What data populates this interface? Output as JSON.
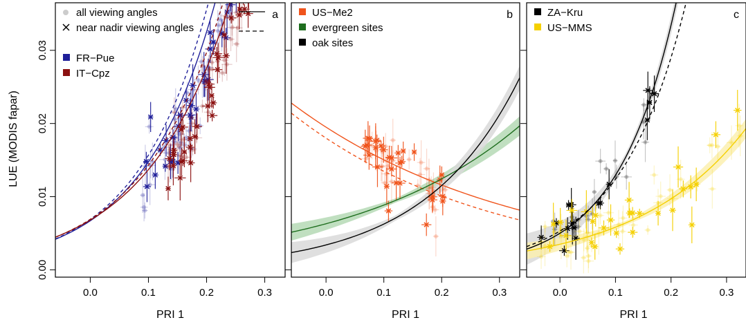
{
  "chart_data": [
    {
      "type": "scatter",
      "panel_label": "a",
      "xlabel": "PRI 1",
      "ylabel": "LUE (MODIS fapar)",
      "xlim": [
        -0.06,
        0.335
      ],
      "ylim": [
        -0.001,
        0.0365
      ],
      "xticks": [
        0.0,
        0.1,
        0.2,
        0.3
      ],
      "xtick_labels": [
        "0.0",
        "0.1",
        "0.2",
        "0.3"
      ],
      "yticks": [
        0.0,
        0.01,
        0.02,
        0.03
      ],
      "ytick_labels": [
        "0.00",
        "0.01",
        "0.02",
        "0.03"
      ],
      "legend": {
        "symbols": [
          {
            "marker": "dot",
            "label": "all viewing angles",
            "line": "solid"
          },
          {
            "marker": "cross",
            "label": "near nadir viewing angles",
            "line": "dashed"
          }
        ],
        "sites": [
          {
            "label": "FR−Pue",
            "color": "#1f1f99"
          },
          {
            "label": "IT−Cpz",
            "color": "#8b1010"
          }
        ]
      },
      "fits": [
        {
          "color": "#1f1f99",
          "dash": false,
          "a": 0.0067,
          "b": 7.9
        },
        {
          "color": "#1f1f99",
          "dash": true,
          "a": 0.0069,
          "b": 8.2
        },
        {
          "color": "#8b1010",
          "dash": false,
          "a": 0.0068,
          "b": 7.0
        },
        {
          "color": "#8b1010",
          "dash": true,
          "a": 0.0069,
          "b": 7.3
        }
      ],
      "scatter": [
        {
          "color": "#1f1f99",
          "n": 90,
          "xmin": 0.09,
          "xmax": 0.29,
          "a": 0.006,
          "b": 7.5,
          "sd": 0.004,
          "seed": 11
        },
        {
          "color": "#8b1010",
          "n": 90,
          "xmin": 0.13,
          "xmax": 0.3,
          "a": 0.006,
          "b": 7.0,
          "sd": 0.0045,
          "seed": 23
        }
      ]
    },
    {
      "type": "scatter",
      "panel_label": "b",
      "xlabel": "PRI 1",
      "xlim": [
        -0.06,
        0.335
      ],
      "ylim": [
        -0.001,
        0.0365
      ],
      "xticks": [
        0.0,
        0.1,
        0.2,
        0.3
      ],
      "xtick_labels": [
        "0.0",
        "0.1",
        "0.2",
        "0.3"
      ],
      "yticks": [
        0.0,
        0.01,
        0.02,
        0.03
      ],
      "legend": {
        "sites": [
          {
            "label": "US−Me2",
            "color": "#f0541c"
          },
          {
            "label": "evergreen sites",
            "color": "#1e6e1e"
          },
          {
            "label": "oak sites",
            "color": "#000000"
          }
        ]
      },
      "fits": [
        {
          "color": "#f0541c",
          "dash": false,
          "a": 0.0195,
          "b": -2.6
        },
        {
          "color": "#f0541c",
          "dash": true,
          "a": 0.018,
          "b": -2.9
        },
        {
          "color": "#1e6e1e",
          "dash": false,
          "a": 0.0063,
          "b": 3.4,
          "band": 0.0008
        },
        {
          "color": "#000000",
          "dash": false,
          "a": 0.0034,
          "b": 6.1,
          "band": 0.001
        }
      ],
      "scatter": [
        {
          "color": "#f0541c",
          "n": 60,
          "xmin": 0.06,
          "xmax": 0.21,
          "a": 0.021,
          "b": -3.6,
          "sd": 0.0045,
          "seed": 37
        }
      ]
    },
    {
      "type": "scatter",
      "panel_label": "c",
      "xlabel": "PRI 1",
      "xlim": [
        -0.06,
        0.335
      ],
      "ylim": [
        -0.001,
        0.0365
      ],
      "xticks": [
        0.0,
        0.1,
        0.2,
        0.3
      ],
      "xtick_labels": [
        "0.0",
        "0.1",
        "0.2",
        "0.3"
      ],
      "yticks": [
        0.0,
        0.01,
        0.02,
        0.03
      ],
      "legend": {
        "sites": [
          {
            "label": "ZA−Kru",
            "color": "#000000"
          },
          {
            "label": "US−MMS",
            "color": "#f5d000"
          }
        ]
      },
      "fits": [
        {
          "color": "#000000",
          "dash": false,
          "a": 0.005,
          "b": 9.5,
          "band": 0.0015
        },
        {
          "color": "#000000",
          "dash": true,
          "a": 0.0053,
          "b": 8.5
        },
        {
          "color": "#f5d000",
          "dash": false,
          "a": 0.0035,
          "b": 5.1,
          "band": 0.0008
        }
      ],
      "scatter": [
        {
          "color": "#000000",
          "n": 35,
          "xmin": -0.04,
          "xmax": 0.17,
          "a": 0.005,
          "b": 9.5,
          "sd": 0.003,
          "seed": 51
        },
        {
          "color": "#f5d000",
          "n": 70,
          "xmin": -0.04,
          "xmax": 0.33,
          "a": 0.0035,
          "b": 5.1,
          "sd": 0.0035,
          "seed": 67
        }
      ]
    }
  ]
}
